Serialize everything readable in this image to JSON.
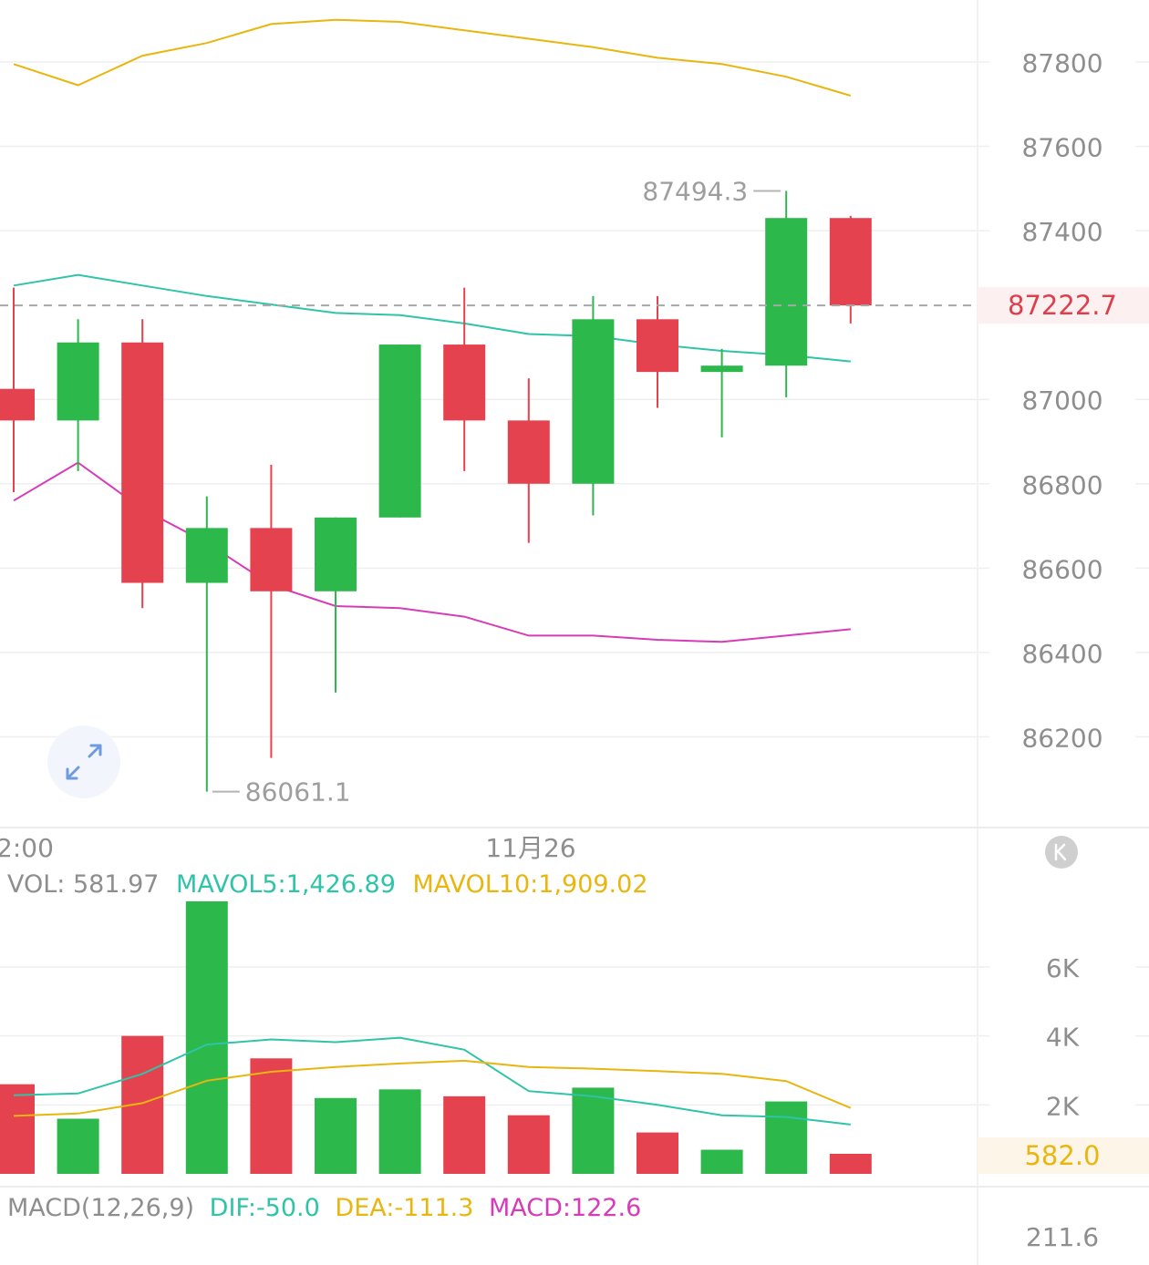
{
  "chart_data": [
    {
      "type": "candlestick",
      "panel": "price",
      "y_axis_ticks": [
        "87800",
        "87600",
        "87400",
        "87000",
        "86800",
        "86600",
        "86400",
        "86200"
      ],
      "ylim": [
        86000,
        87900
      ],
      "current_price": "87222.7",
      "high_label": "87494.3",
      "low_label": "86061.1",
      "x_tick_labels": [
        "2:00",
        "11月26"
      ],
      "candles": [
        {
          "o": 87025,
          "h": 87265,
          "l": 86780,
          "c": 86950,
          "dir": "down"
        },
        {
          "o": 86950,
          "h": 87190,
          "l": 86830,
          "c": 87135,
          "dir": "up"
        },
        {
          "o": 87135,
          "h": 87190,
          "l": 86505,
          "c": 86565,
          "dir": "down"
        },
        {
          "o": 86565,
          "h": 86770,
          "l": 86070,
          "c": 86695,
          "dir": "up"
        },
        {
          "o": 86695,
          "h": 86845,
          "l": 86150,
          "c": 86545,
          "dir": "down"
        },
        {
          "o": 86545,
          "h": 86720,
          "l": 86305,
          "c": 86720,
          "dir": "up"
        },
        {
          "o": 86720,
          "h": 87130,
          "l": 86720,
          "c": 87130,
          "dir": "up"
        },
        {
          "o": 87130,
          "h": 87265,
          "l": 86830,
          "c": 86950,
          "dir": "down"
        },
        {
          "o": 86950,
          "h": 87050,
          "l": 86660,
          "c": 86800,
          "dir": "down"
        },
        {
          "o": 86800,
          "h": 87245,
          "l": 86725,
          "c": 87190,
          "dir": "up"
        },
        {
          "o": 87190,
          "h": 87245,
          "l": 86980,
          "c": 87065,
          "dir": "down"
        },
        {
          "o": 87065,
          "h": 87120,
          "l": 86910,
          "c": 87080,
          "dir": "up"
        },
        {
          "o": 87080,
          "h": 87494.3,
          "l": 87005,
          "c": 87430,
          "dir": "up"
        },
        {
          "o": 87430,
          "h": 87435,
          "l": 87180,
          "c": 87222.7,
          "dir": "down"
        }
      ],
      "series": [
        {
          "color": "#E8B60F",
          "values": [
            87795,
            87745,
            87815,
            87845,
            87890,
            87900,
            87895,
            87875,
            87855,
            87835,
            87810,
            87795,
            87765,
            87720
          ]
        },
        {
          "color": "#2FC4A8",
          "values": [
            87270,
            87295,
            87270,
            87245,
            87225,
            87205,
            87200,
            87180,
            87155,
            87150,
            87130,
            87115,
            87105,
            87090
          ]
        },
        {
          "color": "#D73CB8",
          "values": [
            86760,
            86850,
            86740,
            86660,
            86560,
            86510,
            86505,
            86485,
            86440,
            86440,
            86430,
            86425,
            86440,
            86455
          ]
        }
      ]
    },
    {
      "type": "bar",
      "panel": "volume",
      "legend": {
        "vol": "VOL: 581.97",
        "mavol5": "MAVOL5:1,426.89",
        "mavol10": "MAVOL10:1,909.02"
      },
      "y_axis_ticks": [
        "6K",
        "4K",
        "2K"
      ],
      "ylim": [
        0,
        8000
      ],
      "current_value": "582.0",
      "values": [
        2600,
        1600,
        4000,
        8000,
        3350,
        2200,
        2450,
        2250,
        1700,
        2500,
        1200,
        700,
        2100,
        582
      ],
      "dirs": [
        "down",
        "up",
        "down",
        "up",
        "down",
        "up",
        "up",
        "down",
        "down",
        "up",
        "down",
        "up",
        "up",
        "down"
      ],
      "series": [
        {
          "color": "#2FC4A8",
          "values": [
            2280,
            2330,
            2900,
            3750,
            3900,
            3820,
            3950,
            3600,
            2400,
            2250,
            2000,
            1700,
            1650,
            1430
          ]
        },
        {
          "color": "#E8B60F",
          "values": [
            1680,
            1750,
            2050,
            2700,
            2960,
            3100,
            3200,
            3280,
            3100,
            3050,
            2980,
            2900,
            2690,
            1910
          ]
        }
      ]
    },
    {
      "type": "bar",
      "panel": "macd",
      "legend": {
        "macd_name": "MACD(12,26,9)",
        "dif": "DIF:-50.0",
        "dea": "DEA:-111.3",
        "macd": "MACD:122.6"
      },
      "y_axis_ticks": [
        "211.6"
      ]
    }
  ],
  "colors": {
    "up": "#2DB84B",
    "down": "#E5424F",
    "grid": "#EFEFEF",
    "axis_text": "#8E8E8E",
    "current_price": "#DD3F4C",
    "current_price_bg": "#FDF0F0",
    "current_volume": "#E8B60F",
    "current_volume_bg": "#FDF5E8",
    "dif": "#2FC4A8",
    "dea": "#E8B60F",
    "macd": "#D73CB8",
    "expand_icon": "#6F9BE0",
    "k_badge": "#CFCFCF"
  },
  "icons": {
    "expand": "expand-arrows-icon",
    "badge": "k-badge-icon"
  }
}
